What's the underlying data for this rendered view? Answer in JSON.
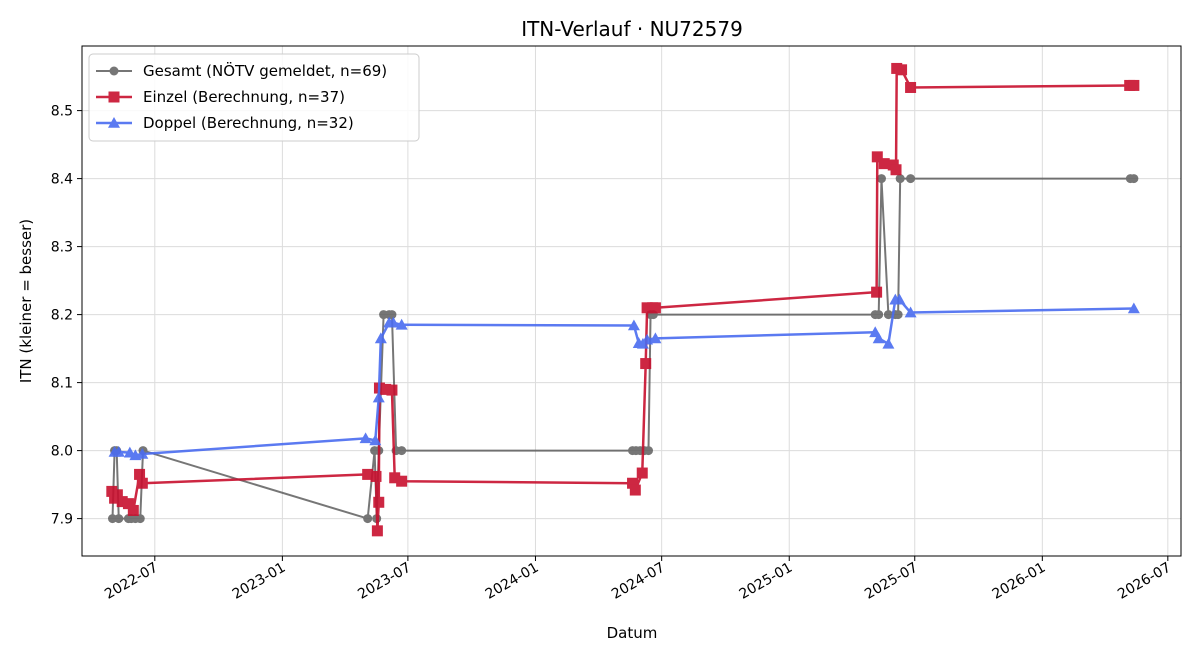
{
  "chart_data": {
    "type": "line",
    "title": "ITN-Verlauf · NU72579",
    "xlabel": "Datum",
    "ylabel": "ITN  (kleiner = besser)",
    "x_ticks": [
      "2022-07",
      "2023-01",
      "2023-07",
      "2024-01",
      "2024-07",
      "2025-01",
      "2025-07",
      "2026-01",
      "2026-07"
    ],
    "y_ticks": [
      "7.9",
      "8.0",
      "8.1",
      "8.2",
      "8.3",
      "8.4",
      "8.5"
    ],
    "xlim": [
      "2022-03-18",
      "2026-07-20"
    ],
    "ylim": [
      7.845,
      8.595
    ],
    "grid": true,
    "legend_position": "top-left",
    "series": [
      {
        "name": "Gesamt (NÖTV gemeldet, n=69)",
        "color": "#555555",
        "marker": "circle",
        "points": [
          [
            "2022-05-01",
            7.9
          ],
          [
            "2022-05-04",
            8.0
          ],
          [
            "2022-05-07",
            8.0
          ],
          [
            "2022-05-10",
            7.9
          ],
          [
            "2022-05-24",
            7.9
          ],
          [
            "2022-05-28",
            7.9
          ],
          [
            "2022-06-03",
            7.9
          ],
          [
            "2022-06-10",
            7.9
          ],
          [
            "2022-06-14",
            8.0
          ],
          [
            "2023-05-04",
            7.9
          ],
          [
            "2023-05-14",
            8.0
          ],
          [
            "2023-05-17",
            7.9
          ],
          [
            "2023-05-20",
            8.0
          ],
          [
            "2023-05-27",
            8.2
          ],
          [
            "2023-06-04",
            8.2
          ],
          [
            "2023-06-08",
            8.2
          ],
          [
            "2023-06-14",
            8.0
          ],
          [
            "2023-06-22",
            8.0
          ],
          [
            "2024-05-20",
            8.0
          ],
          [
            "2024-05-25",
            8.0
          ],
          [
            "2024-05-31",
            8.0
          ],
          [
            "2024-06-06",
            8.0
          ],
          [
            "2024-06-12",
            8.0
          ],
          [
            "2024-06-15",
            8.2
          ],
          [
            "2024-06-19",
            8.2
          ],
          [
            "2025-05-05",
            8.2
          ],
          [
            "2025-05-10",
            8.2
          ],
          [
            "2025-05-14",
            8.4
          ],
          [
            "2025-05-24",
            8.2
          ],
          [
            "2025-06-03",
            8.2
          ],
          [
            "2025-06-07",
            8.2
          ],
          [
            "2025-06-10",
            8.4
          ],
          [
            "2025-06-25",
            8.4
          ],
          [
            "2026-05-08",
            8.4
          ],
          [
            "2026-05-13",
            8.4
          ]
        ]
      },
      {
        "name": "Einzel (Berechnung, n=37)",
        "color": "#c8102e",
        "marker": "square",
        "points": [
          [
            "2022-04-30",
            7.94
          ],
          [
            "2022-05-04",
            7.93
          ],
          [
            "2022-05-08",
            7.935
          ],
          [
            "2022-05-15",
            7.925
          ],
          [
            "2022-05-24",
            7.922
          ],
          [
            "2022-05-31",
            7.912
          ],
          [
            "2022-06-09",
            7.965
          ],
          [
            "2022-06-13",
            7.952
          ],
          [
            "2023-05-04",
            7.965
          ],
          [
            "2023-05-16",
            7.962
          ],
          [
            "2023-05-18",
            7.882
          ],
          [
            "2023-05-20",
            7.924
          ],
          [
            "2023-05-21",
            8.092
          ],
          [
            "2023-05-30",
            8.09
          ],
          [
            "2023-06-08",
            8.089
          ],
          [
            "2023-06-12",
            7.96
          ],
          [
            "2023-06-22",
            7.955
          ],
          [
            "2024-05-20",
            7.952
          ],
          [
            "2024-05-24",
            7.942
          ],
          [
            "2024-06-03",
            7.967
          ],
          [
            "2024-06-08",
            8.128
          ],
          [
            "2024-06-10",
            8.21
          ],
          [
            "2024-06-18",
            8.21
          ],
          [
            "2024-06-22",
            8.21
          ],
          [
            "2025-05-07",
            8.233
          ],
          [
            "2025-05-08",
            8.432
          ],
          [
            "2025-05-18",
            8.422
          ],
          [
            "2025-05-31",
            8.42
          ],
          [
            "2025-06-04",
            8.413
          ],
          [
            "2025-06-05",
            8.562
          ],
          [
            "2025-06-12",
            8.56
          ],
          [
            "2025-06-25",
            8.534
          ],
          [
            "2026-05-07",
            8.537
          ],
          [
            "2026-05-13",
            8.537
          ]
        ]
      },
      {
        "name": "Doppel (Berechnung, n=32)",
        "color": "#4a6cf0",
        "marker": "triangle",
        "points": [
          [
            "2022-05-04",
            7.998
          ],
          [
            "2022-05-10",
            7.998
          ],
          [
            "2022-05-26",
            7.997
          ],
          [
            "2022-06-03",
            7.993
          ],
          [
            "2022-06-13",
            7.995
          ],
          [
            "2023-05-01",
            8.018
          ],
          [
            "2023-05-15",
            8.015
          ],
          [
            "2023-05-20",
            8.078
          ],
          [
            "2023-05-23",
            8.165
          ],
          [
            "2023-06-04",
            8.188
          ],
          [
            "2023-06-10",
            8.188
          ],
          [
            "2023-06-22",
            8.185
          ],
          [
            "2024-05-22",
            8.184
          ],
          [
            "2024-05-29",
            8.158
          ],
          [
            "2024-06-04",
            8.157
          ],
          [
            "2024-06-10",
            8.163
          ],
          [
            "2024-06-22",
            8.165
          ],
          [
            "2025-05-05",
            8.174
          ],
          [
            "2025-05-10",
            8.165
          ],
          [
            "2025-05-24",
            8.157
          ],
          [
            "2025-06-03",
            8.222
          ],
          [
            "2025-06-09",
            8.222
          ],
          [
            "2025-06-25",
            8.203
          ],
          [
            "2026-05-13",
            8.209
          ]
        ]
      }
    ]
  }
}
